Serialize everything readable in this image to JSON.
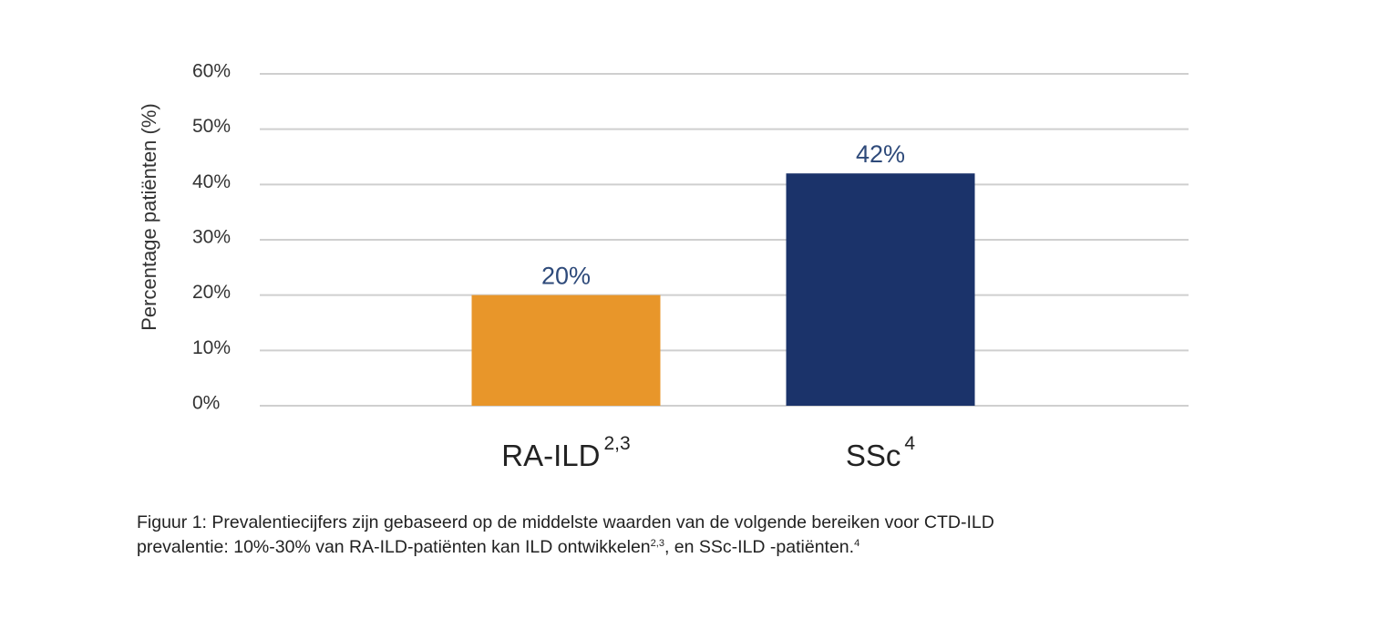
{
  "chart_data": {
    "type": "bar",
    "categories": [
      "RA-ILD",
      "SSc"
    ],
    "category_superscripts": [
      "2,3",
      "4"
    ],
    "values": [
      20,
      42
    ],
    "value_labels": [
      "20%",
      "42%"
    ],
    "colors": [
      "#e8962a",
      "#1b336a"
    ],
    "label_color": "#2e4a7a",
    "ylabel": "Percentage patiënten (%)",
    "ylim": [
      0,
      60
    ],
    "yticks": [
      0,
      10,
      20,
      30,
      40,
      50,
      60
    ],
    "ytick_labels": [
      "0%",
      "10%",
      "20%",
      "30%",
      "40%",
      "50%",
      "60%"
    ],
    "grid": true
  },
  "caption": {
    "line1": "Figuur 1: Prevalentiecijfers zijn gebaseerd op de middelste waarden van de volgende bereiken voor CTD-ILD",
    "line2_a": "prevalentie: 10%-30% van RA-ILD-patiënten kan ILD ontwikkelen",
    "line2_sup1": "2,3",
    "line2_b": ", en SSc-ILD -patiënten.",
    "line2_sup2": "4"
  }
}
